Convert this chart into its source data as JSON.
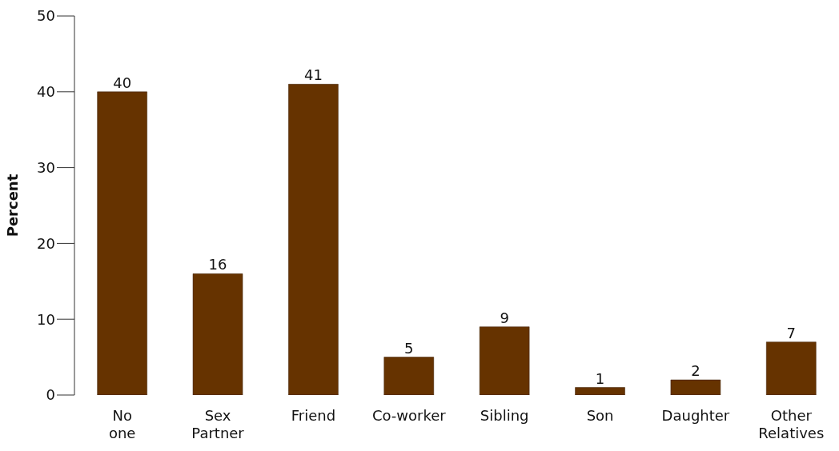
{
  "chart_data": {
    "type": "bar",
    "ylabel": "Percent",
    "categories": [
      "No one",
      "Sex Partner",
      "Friend",
      "Co-worker",
      "Sibling",
      "Son",
      "Daughter",
      "Other Relatives"
    ],
    "values": [
      40,
      16,
      41,
      5,
      9,
      1,
      2,
      7
    ],
    "color": "#663300",
    "ylim": [
      0,
      50
    ],
    "yticks": [
      0,
      10,
      20,
      30,
      40,
      50
    ],
    "grid": false,
    "legend": false,
    "data_labels": true
  }
}
